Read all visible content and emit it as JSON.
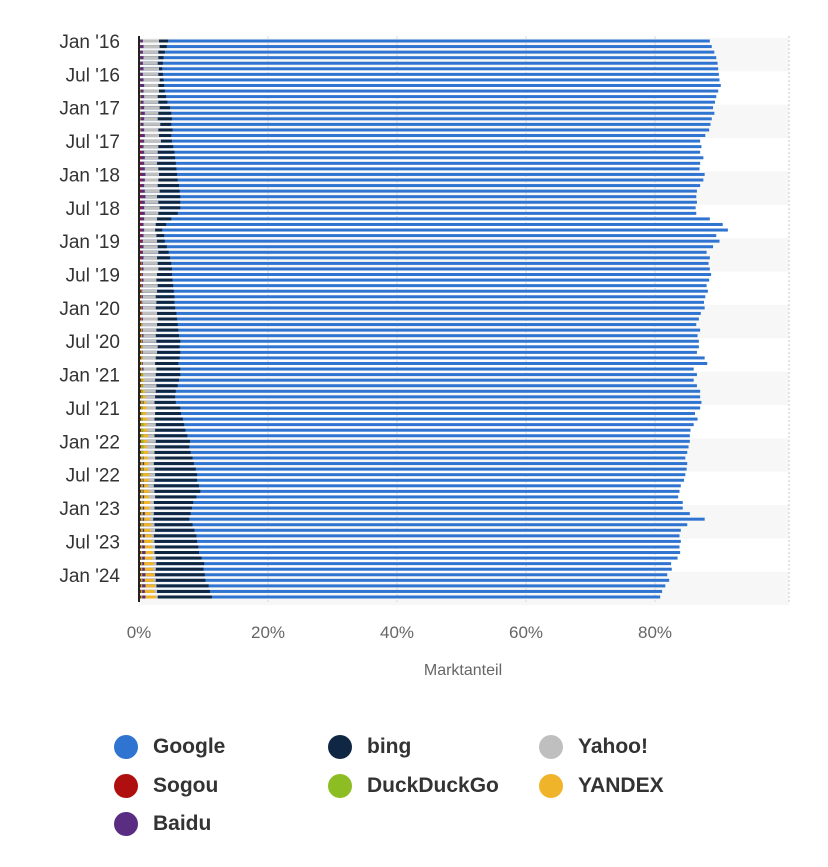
{
  "chart_data": {
    "type": "bar",
    "orientation": "horizontal",
    "xlabel": "Marktanteil",
    "xlim": [
      0,
      100
    ],
    "xticks": [
      "0%",
      "20%",
      "40%",
      "60%",
      "80%"
    ],
    "xtick_values": [
      0,
      20,
      40,
      60,
      80
    ],
    "yticks": [
      "Jan '16",
      "Jul '16",
      "Jan '17",
      "Jul '17",
      "Jan '18",
      "Jul '18",
      "Jan '19",
      "Jul '19",
      "Jan '20",
      "Jul '20",
      "Jan '21",
      "Jul '21",
      "Jan '22",
      "Jul '22",
      "Jan '23",
      "Jul '23",
      "Jan '24"
    ],
    "period": "monthly, Jan 2016 - May 2024",
    "legend_position": "bottom",
    "series": [
      {
        "name": "Google",
        "color": "#2f74d0",
        "values": [
          88.5,
          88.8,
          89.2,
          89.5,
          89.7,
          89.8,
          89.9,
          90.0,
          90.2,
          89.8,
          89.5,
          89.3,
          89.0,
          89.2,
          88.8,
          88.6,
          88.4,
          87.8,
          87.0,
          87.2,
          87.0,
          87.5,
          87.0,
          86.9,
          87.7,
          87.5,
          87.0,
          86.5,
          86.4,
          86.5,
          86.3,
          86.4,
          88.5,
          90.5,
          91.3,
          89.5,
          90.0,
          89.0,
          88.0,
          88.5,
          88.3,
          88.5,
          88.7,
          88.4,
          88.0,
          88.2,
          87.8,
          87.6,
          87.7,
          87.1,
          86.8,
          86.4,
          87.0,
          86.6,
          86.8,
          86.8,
          86.5,
          87.7,
          88.1,
          86.0,
          86.5,
          86.0,
          86.5,
          87.0,
          87.0,
          87.2,
          87.0,
          86.2,
          86.6,
          86.0,
          85.5,
          85.4,
          85.4,
          85.2,
          85.0,
          84.7,
          85.0,
          84.9,
          84.7,
          84.5,
          84.0,
          83.8,
          83.6,
          84.3,
          84.3,
          85.4,
          87.7,
          85.0,
          84.0,
          83.8,
          84.0,
          83.8,
          83.9,
          83.5,
          82.5,
          82.6,
          81.9,
          82.2,
          81.6,
          81.1,
          80.8
        ]
      },
      {
        "name": "bing",
        "color": "#0f2743",
        "values": [
          4.5,
          4.3,
          4.0,
          3.8,
          3.7,
          3.6,
          3.7,
          3.8,
          3.9,
          4.0,
          4.2,
          4.4,
          4.8,
          5.0,
          5.1,
          5.0,
          5.2,
          5.0,
          5.1,
          5.3,
          5.5,
          5.6,
          5.7,
          5.8,
          5.9,
          6.0,
          6.2,
          6.3,
          6.4,
          6.4,
          6.4,
          6.0,
          5.0,
          4.2,
          3.6,
          3.9,
          4.0,
          4.3,
          4.6,
          4.8,
          5.0,
          5.1,
          5.1,
          5.2,
          5.3,
          5.4,
          5.5,
          5.5,
          5.6,
          5.8,
          5.9,
          6.0,
          6.1,
          6.2,
          6.4,
          6.3,
          6.4,
          6.3,
          6.1,
          6.4,
          6.4,
          6.2,
          6.0,
          5.7,
          5.6,
          5.7,
          6.4,
          6.5,
          6.8,
          7.0,
          7.2,
          7.5,
          7.9,
          7.8,
          8.0,
          8.3,
          8.5,
          8.8,
          9.0,
          9.0,
          9.3,
          9.5,
          8.9,
          8.4,
          8.2,
          8.0,
          7.8,
          8.3,
          8.6,
          8.9,
          9.0,
          9.2,
          9.3,
          9.7,
          10.1,
          10.0,
          10.2,
          10.3,
          10.8,
          11.0,
          11.3
        ]
      },
      {
        "name": "Yahoo!",
        "color": "#bfbfbf",
        "values": [
          3.1,
          3.2,
          3.0,
          3.0,
          2.9,
          3.1,
          3.0,
          3.2,
          3.0,
          3.1,
          2.9,
          3.0,
          3.2,
          3.0,
          2.9,
          3.3,
          3.0,
          3.1,
          3.4,
          3.0,
          2.9,
          3.0,
          2.8,
          3.0,
          3.1,
          3.0,
          2.9,
          3.2,
          2.8,
          3.0,
          3.2,
          3.0,
          2.8,
          2.6,
          2.5,
          2.7,
          2.8,
          2.9,
          3.0,
          2.8,
          2.9,
          3.0,
          2.8,
          2.7,
          2.9,
          2.8,
          2.6,
          2.7,
          2.6,
          2.8,
          2.9,
          2.8,
          2.7,
          2.6,
          2.7,
          2.9,
          2.8,
          2.6,
          2.5,
          2.7,
          2.6,
          2.5,
          2.7,
          2.6,
          2.5,
          2.4,
          2.6,
          2.5,
          2.4,
          2.6,
          2.5,
          2.4,
          2.6,
          2.5,
          2.4,
          2.5,
          2.3,
          2.4,
          2.5,
          2.4,
          2.3,
          2.4,
          2.5,
          2.3,
          2.4,
          2.3,
          2.2,
          2.4,
          2.5,
          2.3,
          2.4,
          2.5,
          2.4,
          2.6,
          2.7,
          2.6,
          2.5,
          2.6,
          2.7,
          2.8,
          2.9
        ]
      },
      {
        "name": "YANDEX",
        "color": "#f0b42a",
        "values": [
          0.3,
          0.3,
          0.4,
          0.3,
          0.3,
          0.4,
          0.3,
          0.3,
          0.4,
          0.3,
          0.4,
          0.3,
          0.4,
          0.3,
          0.4,
          0.4,
          0.3,
          0.4,
          0.3,
          0.4,
          0.3,
          0.4,
          0.4,
          0.3,
          0.4,
          0.3,
          0.4,
          0.3,
          0.4,
          0.3,
          0.4,
          0.3,
          0.4,
          0.4,
          0.3,
          0.4,
          0.4,
          0.3,
          0.4,
          0.3,
          0.4,
          0.4,
          0.3,
          0.4,
          0.4,
          0.3,
          0.4,
          0.4,
          0.4,
          0.5,
          0.4,
          0.5,
          0.4,
          0.5,
          0.5,
          0.6,
          0.5,
          0.6,
          0.5,
          0.6,
          0.7,
          0.8,
          0.7,
          0.9,
          1.0,
          1.1,
          1.2,
          1.1,
          1.3,
          1.2,
          1.3,
          1.4,
          1.3,
          1.2,
          1.4,
          1.3,
          1.5,
          1.4,
          1.6,
          1.5,
          1.4,
          1.6,
          1.5,
          1.7,
          1.6,
          1.8,
          1.7,
          1.9,
          1.8,
          2.0,
          2.1,
          2.0,
          2.2,
          2.1,
          2.3,
          2.2,
          2.4,
          2.3,
          2.5,
          2.4,
          2.6
        ]
      },
      {
        "name": "Baidu",
        "color": "#5a2c82",
        "values": [
          0.6,
          0.7,
          0.6,
          0.7,
          0.6,
          0.7,
          0.6,
          0.7,
          0.8,
          0.7,
          0.8,
          0.7,
          0.8,
          0.9,
          0.8,
          0.7,
          0.8,
          0.9,
          0.8,
          0.7,
          0.8,
          0.9,
          0.8,
          0.9,
          1.0,
          0.9,
          0.8,
          0.9,
          1.0,
          0.9,
          0.8,
          0.9,
          0.8,
          0.7,
          0.8,
          0.7,
          0.6,
          0.7,
          0.6,
          0.7,
          0.6,
          0.7,
          0.6,
          0.7,
          0.6,
          0.5,
          0.6,
          0.5,
          0.6,
          0.5,
          0.6,
          0.5,
          0.6,
          0.7,
          0.6,
          0.5,
          0.6,
          0.5,
          0.6,
          0.7,
          0.6,
          0.5,
          0.6,
          0.5,
          0.6,
          0.7,
          0.6,
          0.5,
          0.6,
          0.7,
          0.6,
          0.5,
          0.6,
          0.7,
          0.6,
          0.7,
          0.8,
          0.7,
          0.6,
          0.7,
          0.8,
          0.7,
          0.8,
          0.7,
          0.8,
          0.9,
          0.8,
          0.7,
          0.8,
          0.9,
          0.8,
          0.9,
          1.0,
          0.9,
          0.8,
          0.9,
          1.0,
          0.9,
          1.0,
          0.9,
          1.0
        ]
      },
      {
        "name": "DuckDuckGo",
        "color": "#8cbd23",
        "values": [
          0.2,
          0.2,
          0.2,
          0.2,
          0.2,
          0.2,
          0.2,
          0.2,
          0.2,
          0.3,
          0.3,
          0.3,
          0.3,
          0.3,
          0.3,
          0.3,
          0.3,
          0.3,
          0.3,
          0.3,
          0.3,
          0.3,
          0.3,
          0.3,
          0.3,
          0.3,
          0.3,
          0.3,
          0.3,
          0.3,
          0.3,
          0.3,
          0.3,
          0.3,
          0.3,
          0.3,
          0.3,
          0.3,
          0.3,
          0.3,
          0.4,
          0.4,
          0.4,
          0.4,
          0.4,
          0.4,
          0.4,
          0.4,
          0.4,
          0.4,
          0.4,
          0.5,
          0.5,
          0.5,
          0.5,
          0.5,
          0.5,
          0.5,
          0.5,
          0.5,
          0.6,
          0.6,
          0.6,
          0.6,
          0.6,
          0.6,
          0.6,
          0.6,
          0.6,
          0.7,
          0.7,
          0.7,
          0.7,
          0.7,
          0.7,
          0.6,
          0.6,
          0.6,
          0.6,
          0.6,
          0.6,
          0.6,
          0.6,
          0.6,
          0.6,
          0.6,
          0.6,
          0.6,
          0.6,
          0.6,
          0.5,
          0.5,
          0.5,
          0.5,
          0.5,
          0.5,
          0.5,
          0.5,
          0.5,
          0.5,
          0.5
        ]
      },
      {
        "name": "Sogou",
        "color": "#b00f0f",
        "values": [
          0.2,
          0.2,
          0.2,
          0.2,
          0.2,
          0.2,
          0.2,
          0.2,
          0.2,
          0.2,
          0.2,
          0.2,
          0.2,
          0.2,
          0.2,
          0.2,
          0.2,
          0.3,
          0.3,
          0.3,
          0.3,
          0.3,
          0.3,
          0.3,
          0.3,
          0.3,
          0.3,
          0.3,
          0.3,
          0.3,
          0.3,
          0.3,
          0.3,
          0.3,
          0.3,
          0.3,
          0.3,
          0.3,
          0.3,
          0.3,
          0.3,
          0.3,
          0.3,
          0.3,
          0.3,
          0.3,
          0.3,
          0.3,
          0.3,
          0.3,
          0.3,
          0.3,
          0.3,
          0.3,
          0.3,
          0.3,
          0.3,
          0.3,
          0.3,
          0.3,
          0.3,
          0.3,
          0.3,
          0.3,
          0.3,
          0.3,
          0.3,
          0.3,
          0.3,
          0.3,
          0.3,
          0.3,
          0.3,
          0.3,
          0.3,
          0.3,
          0.3,
          0.3,
          0.3,
          0.3,
          0.3,
          0.3,
          0.3,
          0.3,
          0.3,
          0.3,
          0.3,
          0.3,
          0.3,
          0.3,
          0.3,
          0.3,
          0.3,
          0.3,
          0.3,
          0.3,
          0.3,
          0.3,
          0.3,
          0.3,
          0.3
        ]
      }
    ]
  },
  "legend": [
    {
      "label": "Google",
      "color": "#2f74d0"
    },
    {
      "label": "bing",
      "color": "#0f2743"
    },
    {
      "label": "Yahoo!",
      "color": "#bfbfbf"
    },
    {
      "label": "Sogou",
      "color": "#b00f0f"
    },
    {
      "label": "DuckDuckGo",
      "color": "#8cbd23"
    },
    {
      "label": "YANDEX",
      "color": "#f0b42a"
    },
    {
      "label": "Baidu",
      "color": "#5a2c82"
    }
  ]
}
